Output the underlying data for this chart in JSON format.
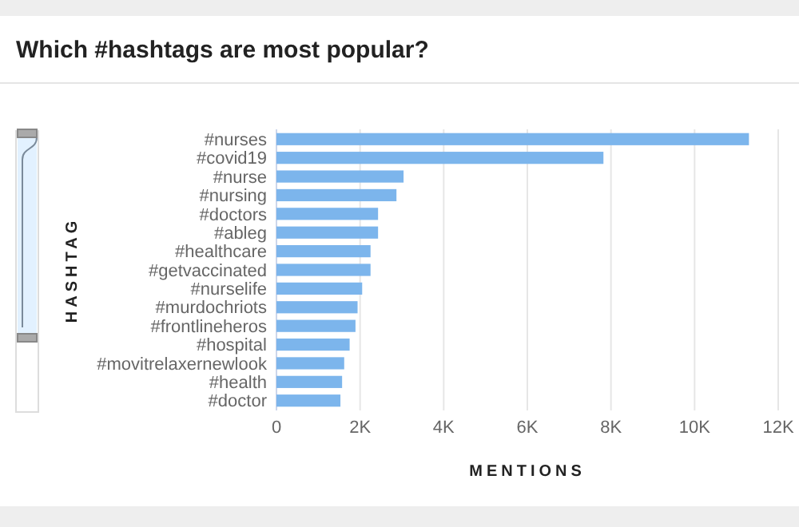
{
  "chart_data": {
    "type": "bar",
    "orientation": "horizontal",
    "title": "Which #hashtags are most popular?",
    "xlabel": "MENTIONS",
    "ylabel": "HASHTAG",
    "categories": [
      "#nurses",
      "#covid19",
      "#nurse",
      "#nursing",
      "#doctors",
      "#ableg",
      "#healthcare",
      "#getvaccinated",
      "#nurselife",
      "#murdochriots",
      "#frontlineheros",
      "#hospital",
      "#movitrelaxernewlook",
      "#health",
      "#doctor"
    ],
    "values": [
      11300,
      7820,
      3040,
      2870,
      2430,
      2430,
      2250,
      2250,
      2050,
      1940,
      1890,
      1750,
      1620,
      1570,
      1530
    ],
    "color": "#7cb5ec",
    "xlim": [
      0,
      12000
    ],
    "xticks": [
      0,
      {
        "value": 2000,
        "label": "2K"
      },
      {
        "value": 4000,
        "label": "4K"
      },
      {
        "value": 6000,
        "label": "6K"
      },
      {
        "value": 8000,
        "label": "8K"
      },
      {
        "value": 10000,
        "label": "10K"
      },
      {
        "value": 12000,
        "label": "12K"
      }
    ],
    "grid": "x"
  }
}
